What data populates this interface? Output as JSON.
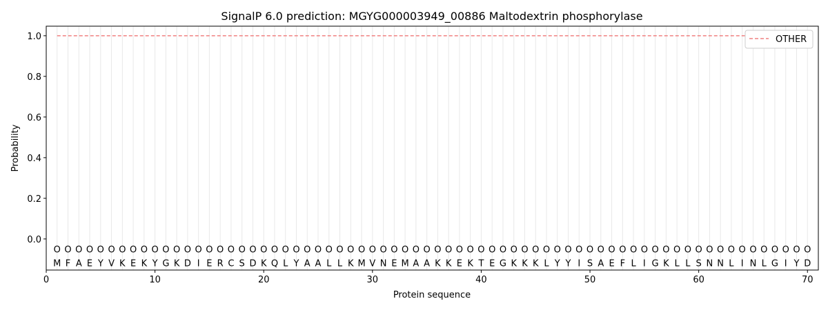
{
  "chart_data": {
    "type": "line",
    "title": "SignalP 6.0 prediction: MGYG000003949_00886 Maltodextrin phosphorylase",
    "xlabel": "Protein sequence",
    "ylabel": "Probability",
    "xlim": [
      0,
      71
    ],
    "ylim": [
      -0.153,
      1.047
    ],
    "xticks": [
      0,
      10,
      20,
      30,
      40,
      50,
      60,
      70
    ],
    "yticks": [
      0.0,
      0.2,
      0.4,
      0.6,
      0.8,
      1.0
    ],
    "ytick_labels": [
      "0.0",
      "0.2",
      "0.4",
      "0.6",
      "0.8",
      "1.0"
    ],
    "grid": "vertical per residue",
    "legend": "top-right",
    "sequence": [
      "M",
      "F",
      "A",
      "E",
      "Y",
      "V",
      "K",
      "E",
      "K",
      "Y",
      "G",
      "K",
      "D",
      "I",
      "E",
      "R",
      "C",
      "S",
      "D",
      "K",
      "Q",
      "L",
      "Y",
      "A",
      "A",
      "L",
      "L",
      "K",
      "M",
      "V",
      "N",
      "E",
      "M",
      "A",
      "A",
      "K",
      "K",
      "E",
      "K",
      "T",
      "E",
      "G",
      "K",
      "K",
      "K",
      "L",
      "Y",
      "Y",
      "I",
      "S",
      "A",
      "E",
      "F",
      "L",
      "I",
      "G",
      "K",
      "L",
      "L",
      "S",
      "N",
      "N",
      "L",
      "I",
      "N",
      "L",
      "G",
      "I",
      "Y",
      "D"
    ],
    "prediction_label": "O",
    "series": [
      {
        "name": "OTHER",
        "color": "#f08080",
        "style": "dashed",
        "x_range": [
          1,
          70
        ],
        "value": 1.0
      }
    ]
  }
}
